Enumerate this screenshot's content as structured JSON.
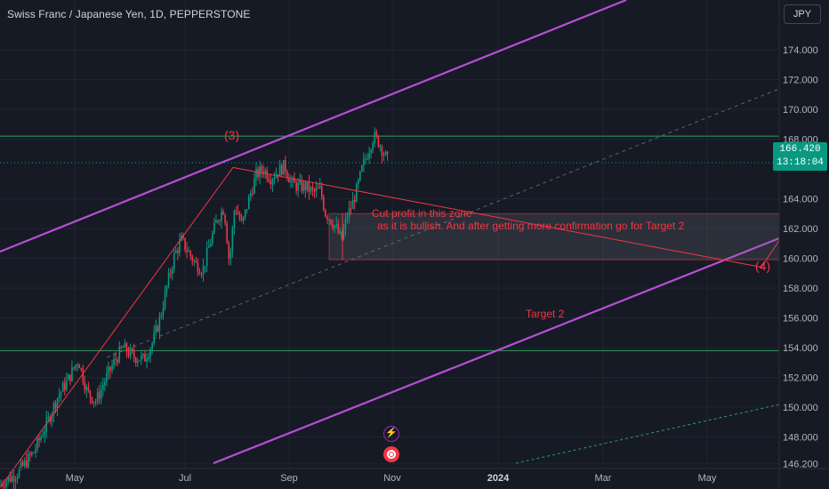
{
  "header": {
    "title": "Swiss Franc / Japanese Yen, 1D, PEPPERSTONE",
    "currency_button": "JPY"
  },
  "price_tag": {
    "price": "166.420",
    "countdown": "13:18:04"
  },
  "colors": {
    "background": "#161a25",
    "bull": "#089981",
    "bear": "#f23645",
    "channel": "#b84fd6",
    "horizontal_level": "#2e9e5e",
    "annotation": "#f23645"
  },
  "chart_data": {
    "type": "candlestick",
    "y_axis": {
      "ticks": [
        "174.000",
        "172.000",
        "170.000",
        "168.000",
        "164.000",
        "162.000",
        "160.000",
        "158.000",
        "156.000",
        "154.000",
        "152.000",
        "150.000",
        "148.000",
        "146.200"
      ],
      "range": [
        145.5,
        175.5
      ]
    },
    "x_axis": {
      "ticks": [
        {
          "label": "May",
          "bold": false
        },
        {
          "label": "Jul",
          "bold": false
        },
        {
          "label": "Sep",
          "bold": false
        },
        {
          "label": "Nov",
          "bold": false
        },
        {
          "label": "2024",
          "bold": true
        },
        {
          "label": "Mar",
          "bold": false
        },
        {
          "label": "May",
          "bold": false
        }
      ]
    },
    "horizontal_levels": [
      168.2,
      153.8
    ],
    "last_price": 166.42,
    "annotations": {
      "wave_3": "(3)",
      "wave_4": "(4)",
      "target_2": "Target 2",
      "zone_line1": "Cut profit in this zone",
      "zone_line2": "as it is bullish. And after getting more confirmation go for Target 2"
    },
    "zone": {
      "top": 163.0,
      "bottom": 159.9
    },
    "path_points": [
      [
        0,
        144.8
      ],
      [
        20,
        145.6
      ],
      [
        38,
        147.0
      ],
      [
        52,
        148.8
      ],
      [
        64,
        150.6
      ],
      [
        76,
        151.8
      ],
      [
        88,
        153.2
      ],
      [
        98,
        151.0
      ],
      [
        108,
        150.4
      ],
      [
        118,
        151.8
      ],
      [
        128,
        153.0
      ],
      [
        138,
        154.0
      ],
      [
        150,
        153.4
      ],
      [
        162,
        153.2
      ],
      [
        172,
        154.4
      ],
      [
        180,
        156.0
      ],
      [
        188,
        158.2
      ],
      [
        196,
        160.2
      ],
      [
        204,
        161.2
      ],
      [
        212,
        160.4
      ],
      [
        220,
        159.6
      ],
      [
        228,
        159.2
      ],
      [
        236,
        161.0
      ],
      [
        244,
        162.6
      ],
      [
        252,
        163.4
      ],
      [
        258,
        159.6
      ],
      [
        264,
        163.6
      ],
      [
        272,
        162.2
      ],
      [
        280,
        164.0
      ],
      [
        288,
        165.6
      ],
      [
        296,
        166.0
      ],
      [
        304,
        165.4
      ],
      [
        312,
        165.8
      ],
      [
        320,
        166.2
      ],
      [
        328,
        165.0
      ],
      [
        336,
        164.8
      ],
      [
        344,
        164.8
      ],
      [
        352,
        164.4
      ],
      [
        360,
        164.6
      ],
      [
        366,
        163.0
      ],
      [
        372,
        162.6
      ],
      [
        378,
        162.0
      ],
      [
        384,
        161.2
      ],
      [
        390,
        162.8
      ],
      [
        396,
        163.6
      ],
      [
        402,
        164.8
      ],
      [
        408,
        166.2
      ],
      [
        414,
        167.2
      ],
      [
        420,
        168.2
      ],
      [
        426,
        167.8
      ],
      [
        432,
        167.0
      ],
      [
        437,
        166.4
      ]
    ]
  }
}
